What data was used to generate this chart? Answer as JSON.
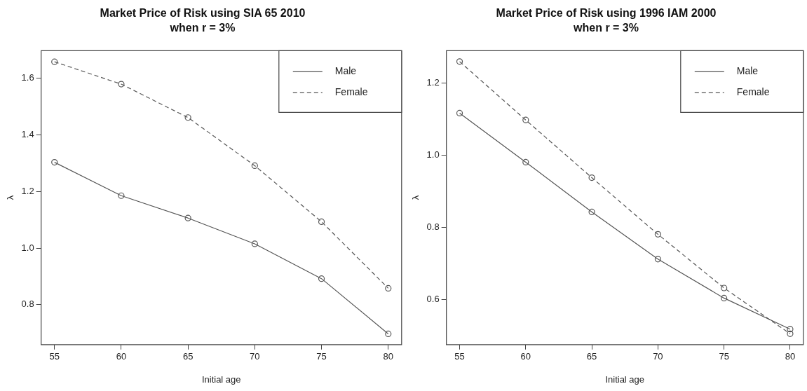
{
  "chart_data": [
    {
      "type": "line",
      "title": "Market Price of Risk using SIA 65 2010",
      "subtitle": "when r = 3%",
      "xlabel": "Initial age",
      "ylabel": "λ",
      "x": [
        55,
        60,
        65,
        70,
        75,
        80
      ],
      "xlim": [
        54,
        81
      ],
      "xticks": [
        55,
        60,
        65,
        70,
        75,
        80
      ],
      "ylim": [
        0.659,
        1.697
      ],
      "yticks": [
        0.8,
        {
          "value": 1,
          "label": "1.0"
        },
        1.2,
        1.4,
        1.6
      ],
      "series": [
        {
          "name": "Male",
          "color": "#555555",
          "line_style": "solid",
          "values": [
            1.303,
            1.185,
            1.106,
            1.015,
            0.892,
            0.697
          ]
        },
        {
          "name": "Female",
          "color": "#555555",
          "line_style": "dashed",
          "values": [
            1.658,
            1.579,
            1.461,
            1.291,
            1.093,
            0.858
          ]
        }
      ],
      "marker": "circle",
      "grid": false,
      "legend": "top right"
    },
    {
      "type": "line",
      "title": "Market Price of Risk using 1996 IAM 2000",
      "subtitle": "when r = 3%",
      "xlabel": "Initial age",
      "ylabel": "λ",
      "x": [
        55,
        60,
        65,
        70,
        75,
        80
      ],
      "xlim": [
        54,
        81
      ],
      "xticks": [
        55,
        60,
        65,
        70,
        75,
        80
      ],
      "ylim": [
        0.475,
        1.29
      ],
      "yticks": [
        0.6,
        0.8,
        {
          "value": 1,
          "label": "1.0"
        },
        1.2
      ],
      "series": [
        {
          "name": "Male",
          "color": "#555555",
          "line_style": "solid",
          "values": [
            1.117,
            0.981,
            0.843,
            0.712,
            0.604,
            0.518
          ]
        },
        {
          "name": "Female",
          "color": "#555555",
          "line_style": "dashed",
          "values": [
            1.26,
            1.098,
            0.938,
            0.781,
            0.632,
            0.505
          ]
        }
      ],
      "marker": "circle",
      "grid": false,
      "legend": "top right"
    }
  ]
}
